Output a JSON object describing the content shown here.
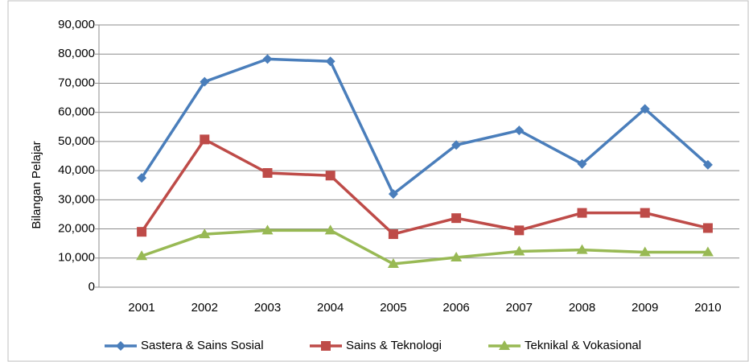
{
  "chart_data": {
    "type": "line",
    "y_label": "Bilangan Pelajar",
    "categories": [
      "2001",
      "2002",
      "2003",
      "2004",
      "2005",
      "2006",
      "2007",
      "2008",
      "2009",
      "2010"
    ],
    "series": [
      {
        "name": "Sastera & Sains Sosial",
        "color": "#4a7ebb",
        "marker": "diamond",
        "values": [
          37500,
          70500,
          78300,
          77500,
          32000,
          48800,
          53800,
          42300,
          61200,
          42000
        ]
      },
      {
        "name": "Sains & Teknologi",
        "color": "#be4b48",
        "marker": "square",
        "values": [
          19000,
          50700,
          39200,
          38300,
          18200,
          23700,
          19500,
          25500,
          25500,
          20300
        ]
      },
      {
        "name": "Teknikal & Vokasional",
        "color": "#98b954",
        "marker": "triangle",
        "values": [
          10700,
          18200,
          19500,
          19500,
          8000,
          10200,
          12300,
          12800,
          12000,
          12000
        ]
      }
    ],
    "ylim": [
      0,
      90000
    ],
    "yticks": [
      0,
      {
        "value": 10000,
        "label": "10,000"
      },
      {
        "value": 20000,
        "label": "20,000"
      },
      {
        "value": 30000,
        "label": "30,000"
      },
      {
        "value": 40000,
        "label": "40,000"
      },
      {
        "value": 50000,
        "label": "50,000"
      },
      {
        "value": 60000,
        "label": "60,000"
      },
      {
        "value": 70000,
        "label": "70,000"
      },
      {
        "value": 80000,
        "label": "80,000"
      },
      {
        "value": 90000,
        "label": "90,000"
      }
    ],
    "grid": true,
    "legend": "bottom"
  }
}
